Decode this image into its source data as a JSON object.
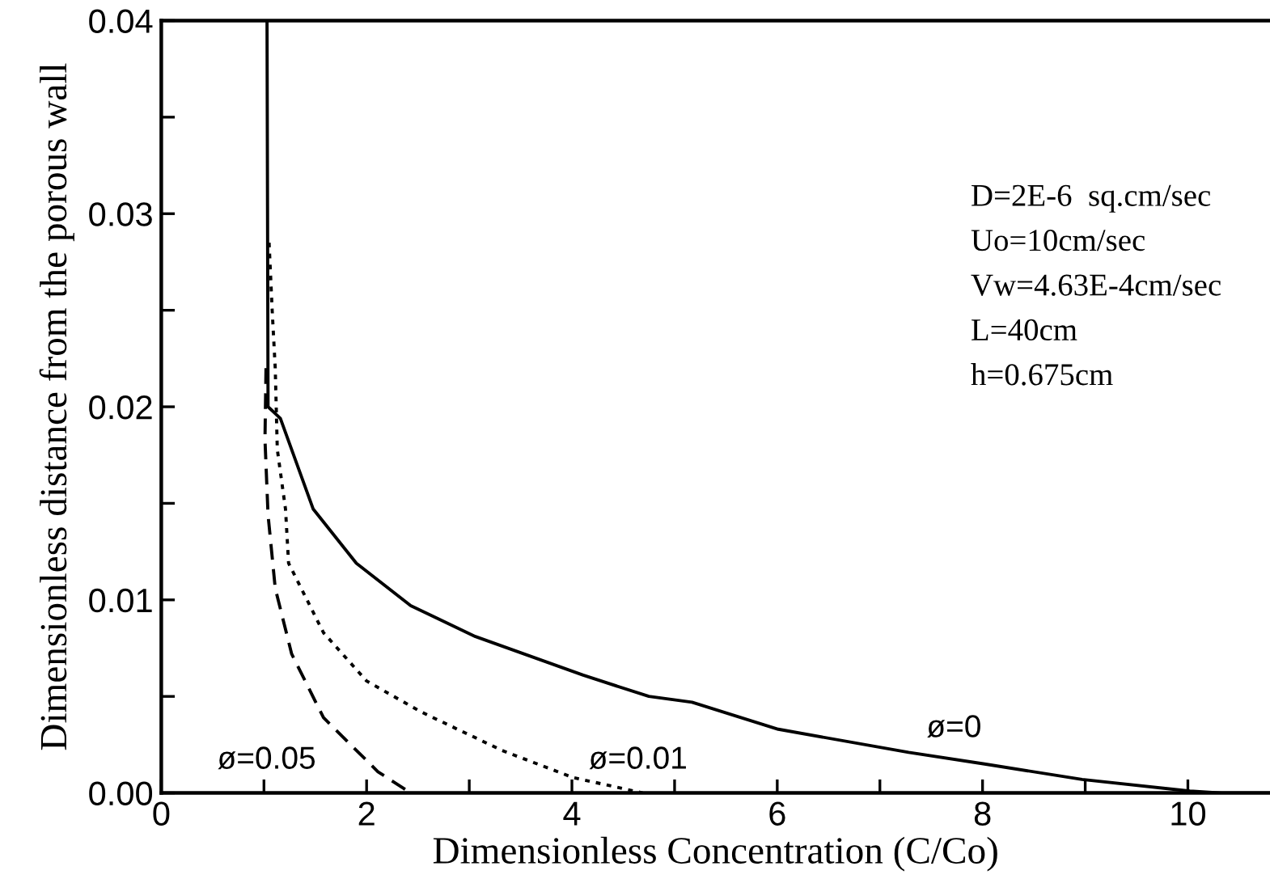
{
  "chart_data": {
    "type": "line",
    "xlabel": "Dimensionless Concentration (C/Co)",
    "ylabel": "Dimensionless distance from the porous wall",
    "xlim": [
      0,
      10.8
    ],
    "ylim": [
      0,
      0.04
    ],
    "xticks": [
      0,
      {
        "value": 1,
        "label": null
      },
      2,
      {
        "value": 3,
        "label": null
      },
      4,
      {
        "value": 5,
        "label": null
      },
      6,
      {
        "value": 7,
        "label": null
      },
      8,
      {
        "value": 9,
        "label": null
      },
      10
    ],
    "yticks": [
      {
        "value": 0,
        "label": "0.00"
      },
      {
        "value": 0.005,
        "label": null
      },
      {
        "value": 0.01,
        "label": "0.01"
      },
      {
        "value": 0.015,
        "label": null
      },
      {
        "value": 0.02,
        "label": "0.02"
      },
      {
        "value": 0.025,
        "label": null
      },
      {
        "value": 0.03,
        "label": "0.03"
      },
      {
        "value": 0.035,
        "label": null
      },
      {
        "value": 0.04,
        "label": "0.04"
      }
    ],
    "grid": false,
    "legend": false,
    "series": [
      {
        "color": "#000000",
        "line_style": "solid",
        "x": [
          1.03,
          1.04,
          1.16,
          1.48,
          1.9,
          2.43,
          3.06,
          4.11,
          4.75,
          5.17,
          6.01,
          7.28,
          8.02,
          8.97,
          10.02,
          10.33,
          10.8
        ],
        "values": [
          0.04,
          0.02,
          0.0194,
          0.0147,
          0.0119,
          0.0097,
          0.0081,
          0.0061,
          0.005,
          0.0047,
          0.0033,
          0.0021,
          0.0015,
          0.0007,
          0.0001,
          0,
          0
        ]
      },
      {
        "color": "#000000",
        "line_style": "dotted",
        "x": [
          1.05,
          1.08,
          1.11,
          1.13,
          1.21,
          1.24,
          1.58,
          2.0,
          2.53,
          3.32,
          4.01,
          4.69
        ],
        "values": [
          0.0285,
          0.025,
          0.022,
          0.0178,
          0.0147,
          0.0119,
          0.0083,
          0.0058,
          0.0042,
          0.0022,
          0.0008,
          0
        ]
      },
      {
        "color": "#000000",
        "line_style": "dashed",
        "x": [
          1.02,
          1.01,
          1.04,
          1.11,
          1.27,
          1.58,
          2.11,
          2.43
        ],
        "values": [
          0.022,
          0.0183,
          0.0144,
          0.0106,
          0.0072,
          0.0039,
          0.0011,
          0
        ]
      }
    ],
    "annotations": [
      "ø=0.05",
      "ø=0.01",
      "ø=0",
      "D=2E-6  sq.cm/sec",
      "Uo=10cm/sec",
      "Vw=4.63E-4cm/sec",
      "L=40cm",
      "h=0.675cm"
    ]
  }
}
